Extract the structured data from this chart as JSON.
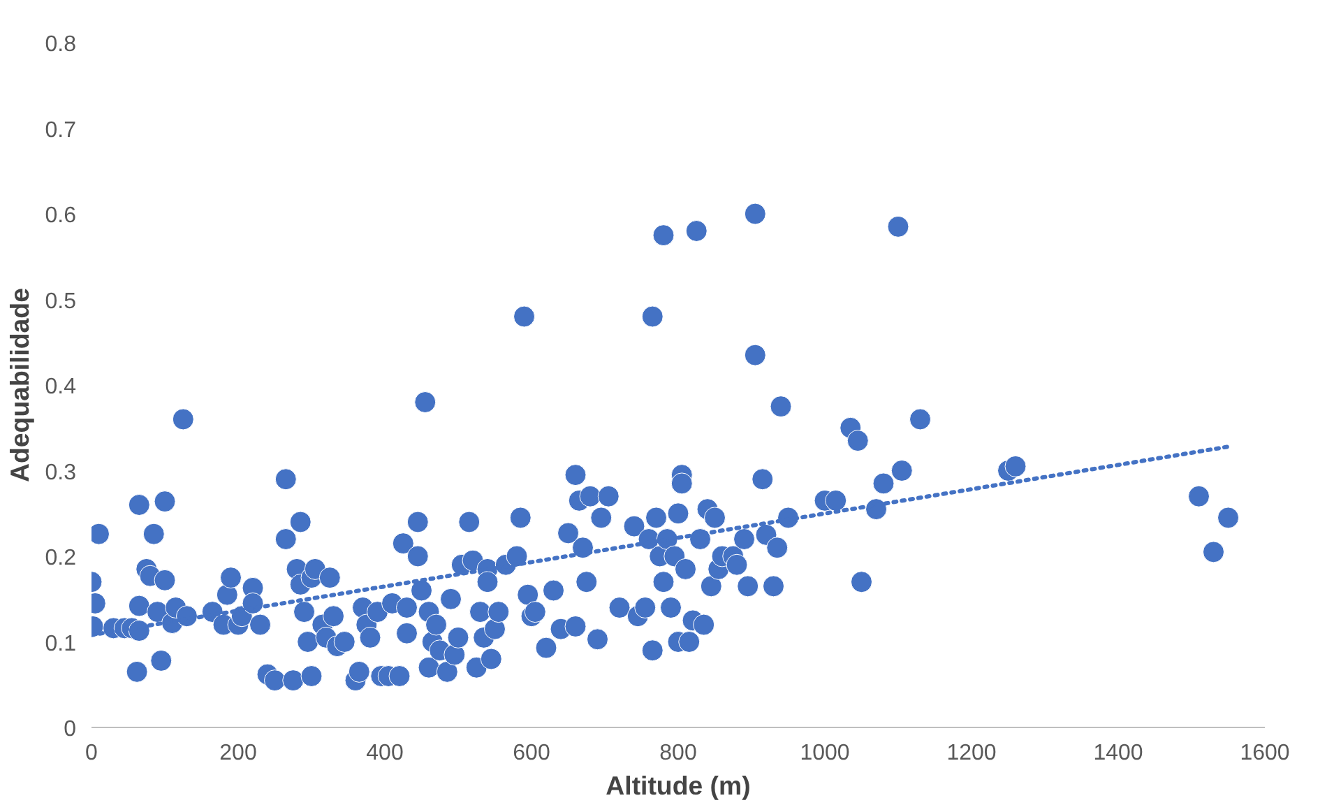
{
  "chart_data": {
    "type": "scatter",
    "xlabel": "Altitude (m)",
    "ylabel": "Adequabilidade",
    "xlim": [
      0,
      1600
    ],
    "ylim": [
      0,
      0.8
    ],
    "xticks": [
      0,
      200,
      400,
      600,
      800,
      1000,
      1200,
      1400,
      1600
    ],
    "yticks": [
      0,
      0.1,
      0.2,
      0.3,
      0.4,
      0.5,
      0.6,
      0.7,
      0.8
    ],
    "grid": false,
    "series": [
      {
        "marker": "circle",
        "color": "#4472c4",
        "x": [
          0,
          5,
          2,
          10,
          30,
          45,
          55,
          65,
          62,
          65,
          65,
          75,
          85,
          80,
          95,
          100,
          100,
          90,
          110,
          115,
          125,
          130,
          165,
          180,
          185,
          190,
          200,
          205,
          220,
          220,
          230,
          240,
          250,
          265,
          265,
          275,
          285,
          280,
          285,
          290,
          295,
          300,
          300,
          305,
          315,
          320,
          325,
          330,
          335,
          345,
          360,
          365,
          370,
          375,
          380,
          390,
          395,
          405,
          410,
          420,
          425,
          430,
          430,
          445,
          445,
          450,
          455,
          460,
          460,
          465,
          470,
          475,
          485,
          490,
          495,
          500,
          505,
          515,
          520,
          525,
          530,
          535,
          540,
          540,
          545,
          550,
          555,
          565,
          580,
          585,
          590,
          595,
          600,
          605,
          620,
          630,
          640,
          650,
          660,
          660,
          665,
          670,
          675,
          680,
          690,
          695,
          705,
          720,
          740,
          745,
          755,
          760,
          765,
          765,
          770,
          775,
          780,
          780,
          785,
          790,
          795,
          800,
          800,
          805,
          805,
          810,
          815,
          820,
          825,
          830,
          835,
          840,
          845,
          850,
          855,
          860,
          875,
          880,
          890,
          895,
          905,
          905,
          915,
          920,
          930,
          935,
          940,
          950,
          1000,
          1015,
          1035,
          1045,
          1050,
          1070,
          1080,
          1100,
          1105,
          1130,
          1250,
          1260,
          1510,
          1530,
          1550
        ],
        "values": [
          0.17,
          0.145,
          0.118,
          0.226,
          0.116,
          0.116,
          0.116,
          0.113,
          0.065,
          0.26,
          0.142,
          0.185,
          0.226,
          0.177,
          0.078,
          0.172,
          0.264,
          0.135,
          0.122,
          0.14,
          0.36,
          0.13,
          0.135,
          0.12,
          0.155,
          0.175,
          0.12,
          0.13,
          0.163,
          0.145,
          0.12,
          0.062,
          0.055,
          0.22,
          0.29,
          0.055,
          0.24,
          0.185,
          0.167,
          0.135,
          0.1,
          0.06,
          0.175,
          0.185,
          0.12,
          0.105,
          0.175,
          0.13,
          0.095,
          0.1,
          0.055,
          0.065,
          0.14,
          0.12,
          0.105,
          0.135,
          0.06,
          0.06,
          0.145,
          0.06,
          0.215,
          0.11,
          0.14,
          0.24,
          0.2,
          0.16,
          0.38,
          0.07,
          0.135,
          0.1,
          0.12,
          0.09,
          0.065,
          0.15,
          0.085,
          0.105,
          0.19,
          0.24,
          0.195,
          0.07,
          0.135,
          0.105,
          0.185,
          0.17,
          0.08,
          0.115,
          0.135,
          0.19,
          0.2,
          0.245,
          0.48,
          0.155,
          0.13,
          0.135,
          0.093,
          0.16,
          0.115,
          0.227,
          0.118,
          0.295,
          0.265,
          0.21,
          0.17,
          0.27,
          0.103,
          0.245,
          0.27,
          0.14,
          0.235,
          0.13,
          0.14,
          0.22,
          0.09,
          0.48,
          0.245,
          0.2,
          0.575,
          0.17,
          0.22,
          0.14,
          0.2,
          0.1,
          0.25,
          0.295,
          0.285,
          0.185,
          0.1,
          0.125,
          0.58,
          0.22,
          0.12,
          0.255,
          0.165,
          0.245,
          0.185,
          0.2,
          0.2,
          0.19,
          0.22,
          0.165,
          0.6,
          0.435,
          0.29,
          0.225,
          0.165,
          0.21,
          0.375,
          0.245,
          0.265,
          0.265,
          0.35,
          0.335,
          0.17,
          0.255,
          0.285,
          0.585,
          0.3,
          0.36,
          0.3,
          0.305,
          0.27,
          0.205,
          0.245
        ]
      },
      {
        "type": "line",
        "line_style": "dotted",
        "color": "#4472c4",
        "x": [
          0,
          1550
        ],
        "values": [
          0.108,
          0.328
        ]
      }
    ]
  }
}
